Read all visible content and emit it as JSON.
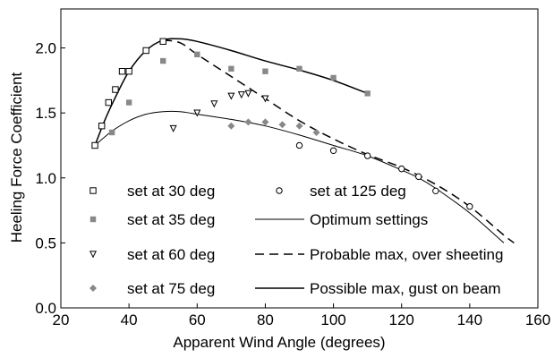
{
  "chart_data": {
    "type": "scatter",
    "xlabel": "Apparent Wind Angle (degrees)",
    "ylabel": "Heeling Force Coefficient",
    "xlim": [
      20,
      160
    ],
    "ylim": [
      0.0,
      2.3
    ],
    "xticks": [
      "20",
      "40",
      "60",
      "80",
      "100",
      "120",
      "140",
      "160"
    ],
    "yticks": [
      "0.0",
      "0.5",
      "1.0",
      "1.5",
      "2.0"
    ],
    "grid": false,
    "legend_position": "lower-left",
    "series": [
      {
        "name": "set at 30 deg",
        "kind": "points",
        "marker": "open-square",
        "color": "#000000",
        "x": [
          30,
          32,
          34,
          36,
          38,
          40,
          45,
          50
        ],
        "y": [
          1.25,
          1.4,
          1.58,
          1.68,
          1.82,
          1.82,
          1.98,
          2.05
        ]
      },
      {
        "name": "set at 35 deg",
        "kind": "points",
        "marker": "filled-square",
        "color": "#888888",
        "x": [
          35,
          40,
          50,
          60,
          70,
          80,
          90,
          100,
          110
        ],
        "y": [
          1.35,
          1.58,
          1.9,
          1.95,
          1.84,
          1.82,
          1.84,
          1.77,
          1.65
        ]
      },
      {
        "name": "set at 60 deg",
        "kind": "points",
        "marker": "open-triangle-down",
        "color": "#000000",
        "x": [
          53,
          60,
          65,
          70,
          73,
          75,
          80
        ],
        "y": [
          1.38,
          1.5,
          1.57,
          1.63,
          1.64,
          1.65,
          1.61
        ]
      },
      {
        "name": "set at 75 deg",
        "kind": "points",
        "marker": "filled-diamond",
        "color": "#888888",
        "x": [
          70,
          75,
          80,
          85,
          90,
          95
        ],
        "y": [
          1.4,
          1.43,
          1.43,
          1.41,
          1.4,
          1.35
        ]
      },
      {
        "name": "set at 125 deg",
        "kind": "points",
        "marker": "open-circle",
        "color": "#000000",
        "x": [
          90,
          100,
          110,
          120,
          125,
          130,
          140
        ],
        "y": [
          1.25,
          1.21,
          1.17,
          1.07,
          1.01,
          0.9,
          0.78
        ]
      },
      {
        "name": "Optimum settings",
        "kind": "line",
        "dash": "solid",
        "width": 1,
        "color": "#000000",
        "x": [
          30,
          35,
          40,
          45,
          50,
          55,
          60,
          70,
          80,
          90,
          100,
          110,
          120,
          125,
          130,
          140,
          150
        ],
        "y": [
          1.25,
          1.36,
          1.44,
          1.49,
          1.51,
          1.51,
          1.49,
          1.45,
          1.4,
          1.33,
          1.25,
          1.17,
          1.06,
          1.0,
          0.92,
          0.73,
          0.5
        ]
      },
      {
        "name": "Probable max, over sheeting",
        "kind": "line",
        "dash": "dashed",
        "width": 1.5,
        "color": "#000000",
        "x": [
          50,
          55,
          60,
          70,
          80,
          90,
          100,
          110,
          120,
          130,
          140,
          150,
          153
        ],
        "y": [
          2.06,
          2.04,
          1.95,
          1.78,
          1.61,
          1.44,
          1.3,
          1.18,
          1.08,
          0.95,
          0.78,
          0.56,
          0.5
        ]
      },
      {
        "name": "Possible max, gust on beam",
        "kind": "line",
        "dash": "solid",
        "width": 1.5,
        "color": "#000000",
        "x": [
          30,
          33,
          36,
          40,
          45,
          50,
          55,
          60,
          70,
          80,
          90,
          100,
          110
        ],
        "y": [
          1.25,
          1.45,
          1.62,
          1.82,
          1.98,
          2.06,
          2.07,
          2.05,
          1.98,
          1.9,
          1.83,
          1.75,
          1.65
        ]
      }
    ],
    "legend_order": [
      "set at 30 deg",
      "set at 125 deg",
      "set at 35 deg",
      "Optimum settings",
      "set at 60 deg",
      "Probable max, over sheeting",
      "set at 75 deg",
      "Possible max, gust on beam"
    ]
  }
}
